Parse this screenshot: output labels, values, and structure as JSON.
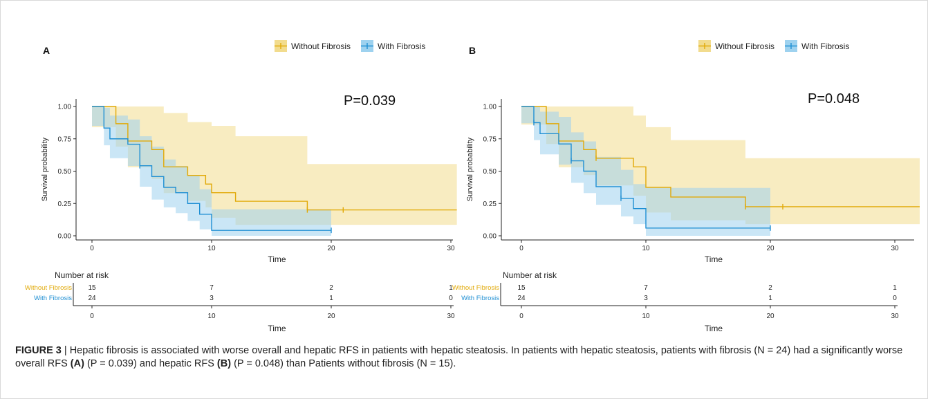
{
  "colors": {
    "without": "#E1A907",
    "with": "#1F8FD3",
    "without_band": "#F2DC8E",
    "with_band": "#9ED2EF",
    "overlap_band": "#A7C49B"
  },
  "legend": {
    "without": "Without Fibrosis",
    "with": "With Fibrosis"
  },
  "chart_data": [
    {
      "type": "line",
      "subtype": "kaplan-meier",
      "panel_label": "A",
      "annotation": "P=0.039",
      "xlabel": "Time",
      "ylabel": "Survival probability",
      "xlim": [
        -3,
        30.5
      ],
      "ylim": [
        -0.04,
        1.05
      ],
      "xticks": [
        "0",
        "10",
        "20",
        "30"
      ],
      "yticks": [
        "0.00",
        "0.25",
        "0.50",
        "0.75",
        "1.00"
      ],
      "legend_position": "top-right",
      "series": [
        {
          "name": "Without Fibrosis",
          "key": "without",
          "steps": [
            [
              0,
              1.0
            ],
            [
              2,
              0.867
            ],
            [
              3,
              0.733
            ],
            [
              5,
              0.667
            ],
            [
              6,
              0.533
            ],
            [
              8,
              0.467
            ],
            [
              9.5,
              0.4
            ],
            [
              10,
              0.333
            ],
            [
              12,
              0.267
            ],
            [
              18,
              0.2
            ],
            [
              30.5,
              0.2
            ]
          ],
          "lower": [
            [
              0,
              0.84
            ],
            [
              2,
              0.69
            ],
            [
              3,
              0.53
            ],
            [
              5,
              0.44
            ],
            [
              6,
              0.33
            ],
            [
              8,
              0.27
            ],
            [
              9.5,
              0.22
            ],
            [
              10,
              0.14
            ],
            [
              12,
              0.085
            ],
            [
              18,
              0.085
            ],
            [
              30.5,
              0.085
            ]
          ],
          "upper": [
            [
              0,
              1.0
            ],
            [
              5,
              1.0
            ],
            [
              6,
              0.95
            ],
            [
              8,
              0.88
            ],
            [
              10,
              0.85
            ],
            [
              12,
              0.77
            ],
            [
              18,
              0.555
            ],
            [
              30.5,
              0.555
            ]
          ],
          "censor": [
            [
              18,
              0.2
            ],
            [
              21,
              0.2
            ]
          ]
        },
        {
          "name": "With Fibrosis",
          "key": "with",
          "steps": [
            [
              0,
              1.0
            ],
            [
              1,
              0.833
            ],
            [
              1.5,
              0.75
            ],
            [
              3,
              0.708
            ],
            [
              4,
              0.542
            ],
            [
              5,
              0.458
            ],
            [
              6,
              0.375
            ],
            [
              7,
              0.333
            ],
            [
              8,
              0.25
            ],
            [
              9,
              0.167
            ],
            [
              10,
              0.042
            ],
            [
              20,
              0.042
            ]
          ],
          "lower": [
            [
              0,
              0.85
            ],
            [
              1,
              0.7
            ],
            [
              1.5,
              0.6
            ],
            [
              3,
              0.54
            ],
            [
              4,
              0.38
            ],
            [
              5,
              0.28
            ],
            [
              6,
              0.22
            ],
            [
              7,
              0.175
            ],
            [
              8,
              0.115
            ],
            [
              9,
              0.05
            ],
            [
              10,
              0.0
            ],
            [
              20,
              0.0
            ]
          ],
          "upper": [
            [
              0,
              1.0
            ],
            [
              1,
              0.99
            ],
            [
              1.5,
              0.93
            ],
            [
              3,
              0.9
            ],
            [
              4,
              0.77
            ],
            [
              5,
              0.69
            ],
            [
              6,
              0.59
            ],
            [
              7,
              0.54
            ],
            [
              8,
              0.47
            ],
            [
              9,
              0.36
            ],
            [
              10,
              0.205
            ],
            [
              20,
              0.205
            ]
          ],
          "censor": [
            [
              4,
              0.542
            ],
            [
              20,
              0.042
            ]
          ]
        }
      ],
      "risk_table": {
        "title": "Number at risk",
        "xlabel": "Time",
        "times": [
          0,
          10,
          20,
          30
        ],
        "rows": [
          {
            "label": "Without Fibrosis",
            "key": "without",
            "values": [
              "15",
              "7",
              "2",
              "1"
            ]
          },
          {
            "label": "With Fibrosis",
            "key": "with",
            "values": [
              "24",
              "3",
              "1",
              "0"
            ]
          }
        ]
      }
    },
    {
      "type": "line",
      "subtype": "kaplan-meier",
      "panel_label": "B",
      "annotation": "P=0.048",
      "xlabel": "Time",
      "ylabel": "Survival probability",
      "xlim": [
        -2,
        32
      ],
      "ylim": [
        -0.04,
        1.05
      ],
      "xticks": [
        "0",
        "10",
        "20",
        "30"
      ],
      "yticks": [
        "0.00",
        "0.25",
        "0.50",
        "0.75",
        "1.00"
      ],
      "legend_position": "top-right",
      "series": [
        {
          "name": "Without Fibrosis",
          "key": "without",
          "steps": [
            [
              0,
              1.0
            ],
            [
              2,
              0.867
            ],
            [
              3,
              0.733
            ],
            [
              5,
              0.667
            ],
            [
              6,
              0.6
            ],
            [
              9,
              0.533
            ],
            [
              10,
              0.375
            ],
            [
              12,
              0.3
            ],
            [
              18,
              0.225
            ],
            [
              32,
              0.225
            ]
          ],
          "lower": [
            [
              0,
              0.86
            ],
            [
              2,
              0.71
            ],
            [
              3,
              0.53
            ],
            [
              5,
              0.47
            ],
            [
              6,
              0.39
            ],
            [
              9,
              0.31
            ],
            [
              10,
              0.18
            ],
            [
              12,
              0.12
            ],
            [
              18,
              0.09
            ],
            [
              32,
              0.09
            ]
          ],
          "upper": [
            [
              0,
              1.0
            ],
            [
              6,
              1.0
            ],
            [
              9,
              0.93
            ],
            [
              10,
              0.84
            ],
            [
              12,
              0.74
            ],
            [
              18,
              0.6
            ],
            [
              32,
              0.6
            ]
          ],
          "censor": [
            [
              6,
              0.6
            ],
            [
              18,
              0.225
            ],
            [
              21,
              0.225
            ]
          ]
        },
        {
          "name": "With Fibrosis",
          "key": "with",
          "steps": [
            [
              0,
              1.0
            ],
            [
              1,
              0.875
            ],
            [
              1.5,
              0.79
            ],
            [
              3,
              0.71
            ],
            [
              4,
              0.58
            ],
            [
              5,
              0.5
            ],
            [
              6,
              0.38
            ],
            [
              8,
              0.29
            ],
            [
              9,
              0.21
            ],
            [
              10,
              0.06
            ],
            [
              20,
              0.06
            ]
          ],
          "lower": [
            [
              0,
              0.87
            ],
            [
              1,
              0.74
            ],
            [
              1.5,
              0.63
            ],
            [
              3,
              0.55
            ],
            [
              4,
              0.41
            ],
            [
              5,
              0.33
            ],
            [
              6,
              0.24
            ],
            [
              8,
              0.15
            ],
            [
              9,
              0.09
            ],
            [
              10,
              0.0
            ],
            [
              20,
              0.0
            ]
          ],
          "upper": [
            [
              0,
              1.0
            ],
            [
              1.5,
              0.96
            ],
            [
              3,
              0.92
            ],
            [
              4,
              0.8
            ],
            [
              5,
              0.73
            ],
            [
              6,
              0.61
            ],
            [
              8,
              0.51
            ],
            [
              9,
              0.4
            ],
            [
              10,
              0.37
            ],
            [
              20,
              0.37
            ]
          ],
          "censor": [
            [
              1,
              0.875
            ],
            [
              4,
              0.58
            ],
            [
              8,
              0.29
            ],
            [
              20,
              0.06
            ]
          ]
        }
      ],
      "risk_table": {
        "title": "Number at risk",
        "xlabel": "Time",
        "times": [
          0,
          10,
          20,
          30
        ],
        "rows": [
          {
            "label": "Without Fibrosis",
            "key": "without",
            "values": [
              "15",
              "7",
              "2",
              "1"
            ]
          },
          {
            "label": "With Fibrosis",
            "key": "with",
            "values": [
              "24",
              "3",
              "1",
              "0"
            ]
          }
        ]
      }
    }
  ],
  "caption": {
    "figure_label": "FIGURE 3",
    "separator": " | ",
    "part1": "Hepatic fibrosis is associated with worse overall and hepatic RFS in patients with hepatic steatosis. In patients with hepatic steatosis, patients with fibrosis (N = 24) had a significantly worse overall RFS ",
    "ref_a": "(A)",
    "part2": " (P = 0.039) and hepatic RFS ",
    "ref_b": "(B)",
    "part3": " (P = 0.048) than Patients without fibrosis (N = 15)."
  }
}
